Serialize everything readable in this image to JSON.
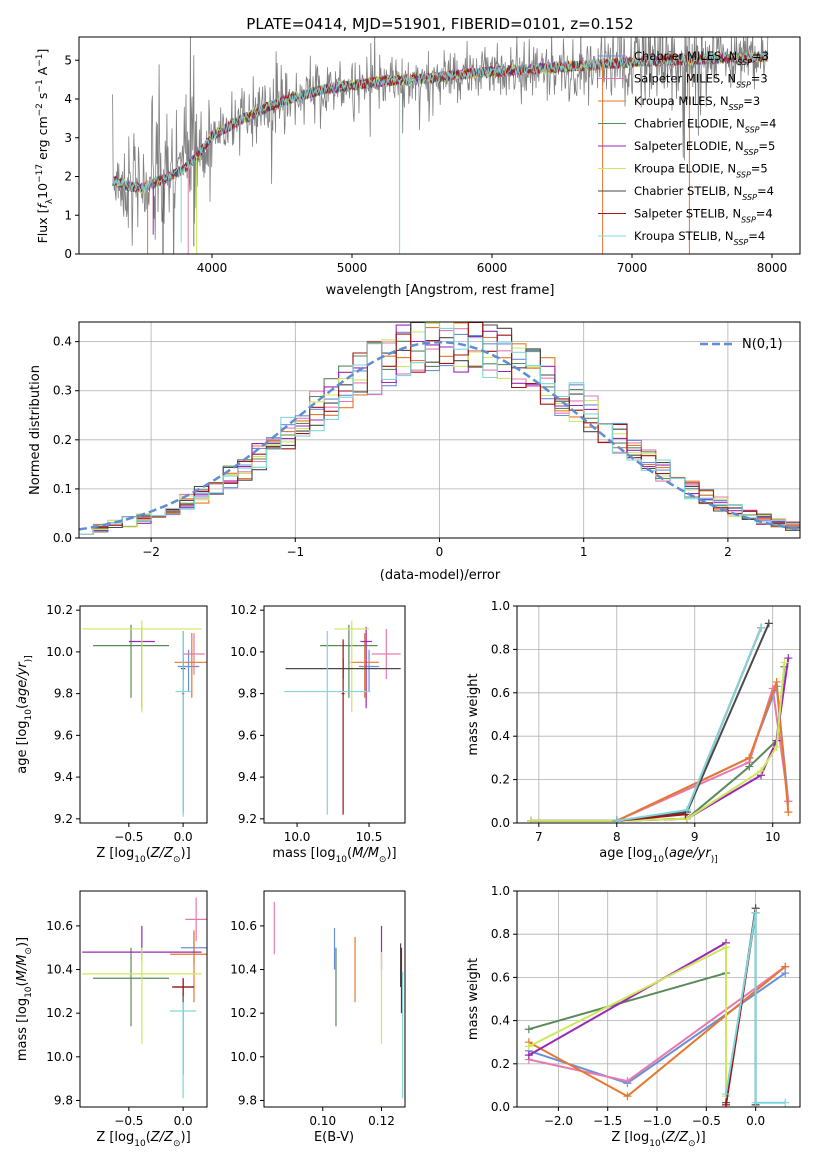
{
  "chart_data": [
    {
      "id": "spectrum",
      "type": "line",
      "title": "PLATE=0414, MJD=51901, FIBERID=0101, z=0.152",
      "xlabel": "wavelength [Angstrom, rest frame]",
      "ylabel": "Flux [f_λ10^-17 erg cm^-2 s^-1 A^-1]",
      "ylabel_parts": [
        "Flux [",
        "f",
        "λ",
        "10",
        "−17",
        " erg cm",
        "−2",
        " s",
        "−1",
        " A",
        "−1",
        "]"
      ],
      "xlim": [
        3050,
        8200
      ],
      "ylim": [
        0,
        5.6
      ],
      "xticks": [
        4000,
        5000,
        6000,
        7000,
        8000
      ],
      "yticks": [
        0,
        1,
        2,
        3,
        4,
        5
      ],
      "grid": false,
      "legend_position": "upper right",
      "continuum": [
        [
          3290,
          1.9
        ],
        [
          3400,
          1.75
        ],
        [
          3500,
          1.7
        ],
        [
          3600,
          1.85
        ],
        [
          3700,
          2.0
        ],
        [
          3800,
          2.2
        ],
        [
          3900,
          2.55
        ],
        [
          4000,
          3.05
        ],
        [
          4200,
          3.45
        ],
        [
          4400,
          3.8
        ],
        [
          4600,
          4.05
        ],
        [
          4800,
          4.25
        ],
        [
          5000,
          4.35
        ],
        [
          5200,
          4.45
        ],
        [
          5400,
          4.5
        ],
        [
          5600,
          4.55
        ],
        [
          5800,
          4.65
        ],
        [
          6000,
          4.7
        ],
        [
          6200,
          4.75
        ],
        [
          6400,
          4.8
        ],
        [
          6600,
          4.85
        ],
        [
          6800,
          4.9
        ],
        [
          7000,
          4.95
        ],
        [
          7200,
          5.0
        ],
        [
          7400,
          5.0
        ],
        [
          7600,
          5.05
        ],
        [
          7800,
          5.05
        ],
        [
          7970,
          5.1
        ]
      ],
      "series": [
        {
          "name": "Chabrier MILES, N_SSP=3",
          "label_parts": [
            "Chabrier MILES, N",
            "SSP",
            "=3"
          ],
          "color": "#6a8fd9"
        },
        {
          "name": "Salpeter MILES, N_SSP=3",
          "label_parts": [
            "Salpeter MILES, N",
            "SSP",
            "=3"
          ],
          "color": "#e67ab0"
        },
        {
          "name": "Kroupa MILES, N_SSP=3",
          "label_parts": [
            "Kroupa MILES, N",
            "SSP",
            "=3"
          ],
          "color": "#e8772e"
        },
        {
          "name": "Chabrier ELODIE, N_SSP=4",
          "label_parts": [
            "Chabrier ELODIE, N",
            "SSP",
            "=4"
          ],
          "color": "#5a8a5a"
        },
        {
          "name": "Salpeter ELODIE, N_SSP=5",
          "label_parts": [
            "Salpeter ELODIE, N",
            "SSP",
            "=5"
          ],
          "color": "#9b27b5"
        },
        {
          "name": "Kroupa ELODIE, N_SSP=5",
          "label_parts": [
            "Kroupa ELODIE, N",
            "SSP",
            "=5"
          ],
          "color": "#cde85a"
        },
        {
          "name": "Chabrier STELIB, N_SSP=4",
          "label_parts": [
            "Chabrier STELIB, N",
            "SSP",
            "=4"
          ],
          "color": "#4a4a4a"
        },
        {
          "name": "Salpeter STELIB, N_SSP=4",
          "label_parts": [
            "Salpeter STELIB, N",
            "SSP",
            "=4"
          ],
          "color": "#a01515"
        },
        {
          "name": "Kroupa STELIB, N_SSP=4",
          "label_parts": [
            "Kroupa STELIB, N",
            "SSP",
            "=4"
          ],
          "color": "#7fd6dc"
        }
      ]
    },
    {
      "id": "residuals",
      "type": "step",
      "xlabel": "(data-model)/error",
      "ylabel": "Normed distribution",
      "xlim": [
        -2.5,
        2.5
      ],
      "ylim": [
        0,
        0.44
      ],
      "xticks": [
        -2,
        -1,
        0,
        1,
        2
      ],
      "yticks": [
        0.0,
        0.1,
        0.2,
        0.3,
        0.4
      ],
      "grid": true,
      "legend": "N(0,1)",
      "legend_position": "upper right",
      "gaussian": {
        "mean": 0,
        "sigma": 1,
        "color": "#5f8dd3"
      },
      "bins": [
        -2.5,
        -2.4,
        -2.3,
        -2.2,
        -2.1,
        -2.0,
        -1.9,
        -1.8,
        -1.7,
        -1.6,
        -1.5,
        -1.4,
        -1.3,
        -1.2,
        -1.1,
        -1.0,
        -0.9,
        -0.8,
        -0.7,
        -0.6,
        -0.5,
        -0.4,
        -0.3,
        -0.2,
        -0.1,
        0.0,
        0.1,
        0.2,
        0.3,
        0.4,
        0.5,
        0.6,
        0.7,
        0.8,
        0.9,
        1.0,
        1.1,
        1.2,
        1.3,
        1.4,
        1.5,
        1.6,
        1.7,
        1.8,
        1.9,
        2.0,
        2.1,
        2.2,
        2.3,
        2.4,
        2.5
      ]
    },
    {
      "id": "age-vs-Z",
      "type": "errorbar",
      "xlabel": "Z [log10(Z/Z⊙)]",
      "ylabel": "age [log10(age/yr)]",
      "xlim": [
        -0.95,
        0.22
      ],
      "ylim": [
        9.18,
        10.22
      ],
      "xticks": [
        -0.5,
        0.0
      ],
      "yticks": [
        9.2,
        9.4,
        9.6,
        9.8,
        10.0,
        10.2
      ],
      "points": [
        {
          "x": 0.05,
          "y": 9.93,
          "xerr": 0.1,
          "yerr": [
            0.12,
            0.08
          ]
        },
        {
          "x": 0.1,
          "y": 9.99,
          "xerr": 0.1,
          "yerr": [
            0.1,
            0.1
          ]
        },
        {
          "x": 0.08,
          "y": 9.95,
          "xerr": 0.16,
          "yerr": [
            0.17,
            0.14
          ]
        },
        {
          "x": -0.48,
          "y": 10.03,
          "xerr": 0.35,
          "yerr": [
            0.25,
            0.1
          ]
        },
        {
          "x": -0.38,
          "y": 10.05,
          "xerr": 0.12,
          "yerr": [
            0.32,
            0.07
          ]
        },
        {
          "x": -0.38,
          "y": 10.11,
          "xerr": 0.55,
          "yerr": [
            0.4,
            0.04
          ]
        },
        {
          "x": 0.0,
          "y": 9.92,
          "xerr": 0.02,
          "yerr": [
            0.05,
            0.05
          ]
        },
        {
          "x": 0.0,
          "y": 9.8,
          "xerr": 0.01,
          "yerr": [
            0.57,
            0.3
          ]
        },
        {
          "x": 0.0,
          "y": 9.81,
          "xerr": 0.07,
          "yerr": [
            0.6,
            0.29
          ]
        }
      ]
    },
    {
      "id": "age-vs-mass",
      "type": "errorbar",
      "xlabel": "mass [log10(M/M⊙)]",
      "ylabel": "",
      "xlim": [
        9.77,
        10.75
      ],
      "ylim": [
        9.18,
        10.22
      ],
      "xticks": [
        10.0,
        10.5
      ],
      "yticks": [
        9.2,
        9.4,
        9.6,
        9.8,
        10.0,
        10.2
      ],
      "points": [
        {
          "x": 10.5,
          "y": 9.93,
          "xerr": 0.07,
          "yerr": [
            0.12,
            0.08
          ]
        },
        {
          "x": 10.62,
          "y": 9.99,
          "xerr": 0.1,
          "yerr": [
            0.12,
            0.12
          ]
        },
        {
          "x": 10.47,
          "y": 9.95,
          "xerr": 0.1,
          "yerr": [
            0.17,
            0.14
          ]
        },
        {
          "x": 10.36,
          "y": 10.03,
          "xerr": 0.2,
          "yerr": [
            0.25,
            0.1
          ]
        },
        {
          "x": 10.48,
          "y": 10.05,
          "xerr": 0.04,
          "yerr": [
            0.32,
            0.07
          ]
        },
        {
          "x": 10.38,
          "y": 10.11,
          "xerr": 0.12,
          "yerr": [
            0.4,
            0.04
          ]
        },
        {
          "x": 10.32,
          "y": 9.92,
          "xerr": 0.4,
          "yerr": [
            0.05,
            0.05
          ]
        },
        {
          "x": 10.32,
          "y": 9.8,
          "xerr": 0.01,
          "yerr": [
            0.58,
            0.26
          ]
        },
        {
          "x": 10.21,
          "y": 9.81,
          "xerr": 0.3,
          "yerr": [
            0.59,
            0.29
          ]
        }
      ]
    },
    {
      "id": "weight-vs-age",
      "type": "line",
      "xlabel": "age [log10(age/yr)]",
      "ylabel": "mass weight",
      "xlim": [
        6.72,
        10.35
      ],
      "ylim": [
        0,
        1.0
      ],
      "xticks": [
        7,
        8,
        9,
        10
      ],
      "yticks": [
        0.0,
        0.2,
        0.4,
        0.6,
        0.8,
        1.0
      ],
      "grid": true,
      "series": [
        {
          "x": [
            8.0,
            9.7,
            10.05,
            10.2
          ],
          "y": [
            0.01,
            0.3,
            0.63,
            0.1
          ]
        },
        {
          "x": [
            8.0,
            9.7,
            10.0,
            10.2
          ],
          "y": [
            0.01,
            0.28,
            0.62,
            0.1
          ]
        },
        {
          "x": [
            8.0,
            9.7,
            10.05,
            10.2
          ],
          "y": [
            0.01,
            0.3,
            0.65,
            0.05
          ]
        },
        {
          "x": [
            6.9,
            8.0,
            8.9,
            9.7,
            10.05,
            10.15
          ],
          "y": [
            0.01,
            0.01,
            0.02,
            0.26,
            0.38,
            0.72
          ]
        },
        {
          "x": [
            6.9,
            8.0,
            8.9,
            9.85,
            10.05,
            10.2
          ],
          "y": [
            0.01,
            0.01,
            0.02,
            0.22,
            0.38,
            0.76
          ]
        },
        {
          "x": [
            6.9,
            8.0,
            8.9,
            9.85,
            10.05,
            10.15
          ],
          "y": [
            0.01,
            0.01,
            0.02,
            0.24,
            0.35,
            0.74
          ]
        },
        {
          "x": [
            8.0,
            8.9,
            9.95
          ],
          "y": [
            0.01,
            0.05,
            0.92
          ]
        },
        {
          "x": [
            8.0,
            8.88,
            9.85
          ],
          "y": [
            0.01,
            0.04,
            0.9
          ]
        },
        {
          "x": [
            8.0,
            8.9,
            9.85
          ],
          "y": [
            0.01,
            0.06,
            0.9
          ]
        }
      ]
    },
    {
      "id": "mass-vs-Z",
      "type": "errorbar",
      "xlabel": "Z [log10(Z/Z⊙)]",
      "ylabel": "mass [log10(M/M⊙)]",
      "xlim": [
        -0.95,
        0.22
      ],
      "ylim": [
        9.77,
        10.76
      ],
      "xticks": [
        -0.5,
        0.0
      ],
      "yticks": [
        9.8,
        10.0,
        10.2,
        10.4,
        10.6
      ],
      "points": [
        {
          "x": 0.1,
          "y": 10.5,
          "xerr": 0.12,
          "yerr": [
            0.07,
            0.07
          ]
        },
        {
          "x": 0.12,
          "y": 10.63,
          "xerr": 0.1,
          "yerr": [
            0.1,
            0.1
          ]
        },
        {
          "x": 0.1,
          "y": 10.47,
          "xerr": 0.22,
          "yerr": [
            0.22,
            0.11
          ]
        },
        {
          "x": -0.48,
          "y": 10.36,
          "xerr": 0.35,
          "yerr": [
            0.22,
            0.14
          ]
        },
        {
          "x": -0.38,
          "y": 10.48,
          "xerr": 0.55,
          "yerr": [
            0.04,
            0.12
          ]
        },
        {
          "x": -0.38,
          "y": 10.38,
          "xerr": 0.55,
          "yerr": [
            0.32,
            0.12
          ]
        },
        {
          "x": 0.0,
          "y": 10.32,
          "xerr": 0.1,
          "yerr": [
            0.4,
            0.04
          ]
        },
        {
          "x": 0.0,
          "y": 10.32,
          "xerr": 0.1,
          "yerr": [
            0.04,
            0.04
          ]
        },
        {
          "x": 0.0,
          "y": 10.21,
          "xerr": 0.12,
          "yerr": [
            0.4,
            0.04
          ]
        }
      ]
    },
    {
      "id": "mass-vs-EBV",
      "type": "errorbar",
      "xlabel": "E(B-V)",
      "ylabel": "",
      "xlim": [
        0.08,
        0.128
      ],
      "ylim": [
        9.77,
        10.76
      ],
      "xticks": [
        0.1,
        0.12
      ],
      "yticks": [
        9.8,
        10.0,
        10.2,
        10.4,
        10.6
      ],
      "points": [
        {
          "x": 0.104,
          "y": 10.5,
          "xerr": 0,
          "yerr": [
            0.1,
            0.09
          ]
        },
        {
          "x": 0.0835,
          "y": 10.6,
          "xerr": 0,
          "yerr": [
            0.13,
            0.11
          ]
        },
        {
          "x": 0.111,
          "y": 10.4,
          "xerr": 0,
          "yerr": [
            0.15,
            0.15
          ]
        },
        {
          "x": 0.1045,
          "y": 10.36,
          "xerr": 0,
          "yerr": [
            0.22,
            0.14
          ]
        },
        {
          "x": 0.12,
          "y": 10.5,
          "xerr": 0,
          "yerr": [
            0.1,
            0.1
          ]
        },
        {
          "x": 0.12,
          "y": 10.3,
          "xerr": 0,
          "yerr": [
            0.24,
            0.18
          ]
        },
        {
          "x": 0.1265,
          "y": 10.42,
          "xerr": 0,
          "yerr": [
            0.1,
            0.1
          ]
        },
        {
          "x": 0.1268,
          "y": 10.35,
          "xerr": 0,
          "yerr": [
            0.15,
            0.15
          ]
        },
        {
          "x": 0.1272,
          "y": 10.1,
          "xerr": 0,
          "yerr": [
            0.29,
            0.29
          ]
        }
      ]
    },
    {
      "id": "weight-vs-Z",
      "type": "line",
      "xlabel": "Z [log10(Z/Z⊙)]",
      "ylabel": "mass weight",
      "xlim": [
        -2.42,
        0.45
      ],
      "ylim": [
        0,
        1.0
      ],
      "xticks": [
        -2.0,
        -1.5,
        -1.0,
        -0.5,
        0.0
      ],
      "yticks": [
        0.0,
        0.2,
        0.4,
        0.6,
        0.8,
        1.0
      ],
      "grid": true,
      "series": [
        {
          "x": [
            -2.3,
            -1.3,
            0.3
          ],
          "y": [
            0.26,
            0.11,
            0.62
          ]
        },
        {
          "x": [
            -2.3,
            -1.3,
            0.3
          ],
          "y": [
            0.22,
            0.12,
            0.65
          ]
        },
        {
          "x": [
            -2.3,
            -1.3,
            0.3
          ],
          "y": [
            0.3,
            0.05,
            0.65
          ]
        },
        {
          "x": [
            -2.3,
            -0.3
          ],
          "y": [
            0.36,
            0.62
          ]
        },
        {
          "x": [
            -2.3,
            -0.3
          ],
          "y": [
            0.24,
            0.76
          ]
        },
        {
          "x": [
            -2.3,
            -0.3,
            -0.3
          ],
          "y": [
            0.28,
            0.74,
            0.05
          ]
        },
        {
          "x": [
            -0.3,
            0.0,
            0.0
          ],
          "y": [
            0.02,
            0.92,
            0.01
          ]
        },
        {
          "x": [
            -0.3,
            0.0
          ],
          "y": [
            0.01,
            0.9
          ]
        },
        {
          "x": [
            -0.3,
            0.0,
            0.0,
            0.3
          ],
          "y": [
            0.06,
            0.9,
            0.02,
            0.02
          ]
        }
      ]
    }
  ],
  "labels": {
    "age_ylabel_parts": [
      "age  [log",
      "10",
      "(",
      "age/yr",
      ")]"
    ],
    "mass_ylabel_parts": [
      "mass [log",
      "10",
      "(",
      "M/M",
      "⊙",
      ")]"
    ],
    "z_xlabel_parts": [
      "Z [log",
      "10",
      "(",
      "Z/Z",
      "⊙",
      ")]"
    ],
    "mass_xlabel_parts": [
      "mass [log",
      "10",
      "(",
      "M/M",
      "⊙",
      ")]"
    ],
    "age_xlabel_parts": [
      "age  [log",
      "10",
      "(",
      "age/yr",
      ")]"
    ]
  }
}
